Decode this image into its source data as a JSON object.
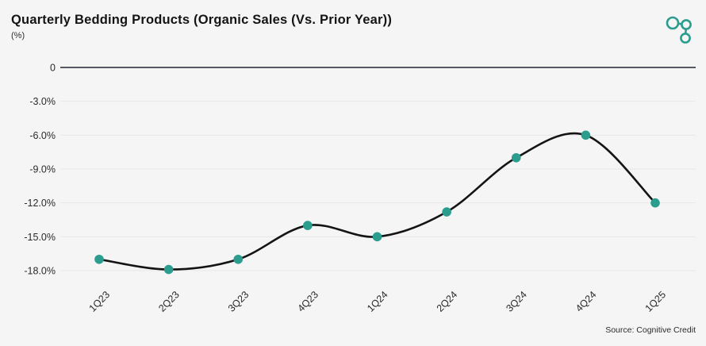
{
  "header": {
    "title": "Quarterly Bedding Products (Organic Sales (Vs. Prior Year))",
    "subtitle": "(%)",
    "logo_icon": "molecule-icon",
    "accent_color": "#2a9d8f"
  },
  "chart_data": {
    "type": "line",
    "title": "Quarterly Bedding Products (Organic Sales (Vs. Prior Year))",
    "ylabel": "(%)",
    "categories": [
      "1Q23",
      "2Q23",
      "3Q23",
      "4Q23",
      "1Q24",
      "2Q24",
      "3Q24",
      "4Q24",
      "1Q25"
    ],
    "values": [
      -17.0,
      -17.9,
      -17.0,
      -14.0,
      -15.0,
      -12.8,
      -8.0,
      -6.0,
      -12.0
    ],
    "ylim": [
      -19.5,
      0
    ],
    "yticks": [
      0,
      -3,
      -6,
      -9,
      -12,
      -15,
      -18
    ],
    "ytick_labels": [
      "0",
      "-3.0%",
      "-6.0%",
      "-9.0%",
      "-12.0%",
      "-15.0%",
      "-18.0%"
    ],
    "grid": true,
    "legend": false,
    "smooth": true,
    "marker_color": "#2a9d8f",
    "line_color": "#141414",
    "zero_line_color": "#20242e",
    "gridline_color": "#e7e7e8",
    "tick_color": "#2a2a2a"
  },
  "footer": {
    "source": "Source: Cognitive Credit"
  }
}
